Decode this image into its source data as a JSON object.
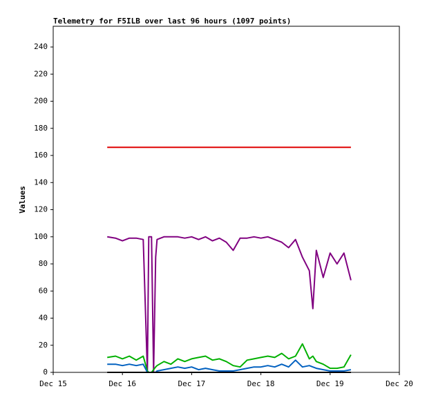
{
  "chart_data": {
    "type": "line",
    "title": "Telemetry for F5ILB over last 96 hours (1097 points)",
    "y_label": "Values",
    "x": [
      15.78,
      15.9,
      16.0,
      16.1,
      16.2,
      16.3,
      16.36,
      16.38,
      16.42,
      16.45,
      16.48,
      16.5,
      16.6,
      16.7,
      16.8,
      16.9,
      17.0,
      17.1,
      17.2,
      17.3,
      17.4,
      17.5,
      17.6,
      17.7,
      17.8,
      17.9,
      18.0,
      18.1,
      18.2,
      18.3,
      18.4,
      18.5,
      18.6,
      18.7,
      18.75,
      18.8,
      18.9,
      19.0,
      19.1,
      19.2,
      19.3
    ],
    "series": [
      {
        "color": "#e00000",
        "values": [
          166,
          166,
          166,
          166,
          166,
          166,
          166,
          166,
          166,
          166,
          166,
          166,
          166,
          166,
          166,
          166,
          166,
          166,
          166,
          166,
          166,
          166,
          166,
          166,
          166,
          166,
          166,
          166,
          166,
          166,
          166,
          166,
          166,
          166,
          166,
          166,
          166,
          166,
          166,
          166,
          166
        ]
      },
      {
        "color": "#800080",
        "values": [
          100,
          99,
          97,
          99,
          99,
          98,
          0,
          100,
          100,
          0,
          85,
          98,
          100,
          100,
          100,
          99,
          100,
          98,
          100,
          97,
          99,
          96,
          90,
          99,
          99,
          100,
          99,
          100,
          98,
          96,
          92,
          98,
          85,
          75,
          47,
          90,
          70,
          88,
          80,
          88,
          68
        ]
      },
      {
        "color": "#00b000",
        "values": [
          11,
          12,
          10,
          12,
          9,
          12,
          1,
          0,
          0,
          2,
          4,
          5,
          8,
          6,
          10,
          8,
          10,
          11,
          12,
          9,
          10,
          8,
          5,
          4,
          9,
          10,
          11,
          12,
          11,
          14,
          10,
          12,
          21,
          10,
          12,
          8,
          6,
          3,
          3,
          4,
          13
        ]
      },
      {
        "color": "#0060c0",
        "values": [
          6,
          6,
          5,
          6,
          5,
          6,
          0,
          0,
          0,
          0,
          0,
          1,
          2,
          3,
          4,
          3,
          4,
          2,
          3,
          2,
          1,
          1,
          1,
          2,
          3,
          4,
          4,
          5,
          4,
          6,
          4,
          9,
          4,
          5,
          4,
          3,
          2,
          1,
          1,
          1,
          2
        ]
      },
      {
        "color": "#000000",
        "values": [
          0,
          0,
          0,
          0,
          0,
          0,
          0,
          0,
          0,
          0,
          0,
          0,
          0,
          0,
          0,
          0,
          0,
          0,
          0,
          0,
          0,
          0,
          0,
          0,
          0,
          0,
          0,
          0,
          0,
          0,
          0,
          0,
          0,
          0,
          0,
          0,
          0,
          0,
          0,
          0,
          0
        ]
      }
    ],
    "xlim": [
      15,
      20
    ],
    "xticks": [
      {
        "value": 15,
        "label": "Dec 15"
      },
      {
        "value": 16,
        "label": "Dec 16"
      },
      {
        "value": 17,
        "label": "Dec 17"
      },
      {
        "value": 18,
        "label": "Dec 18"
      },
      {
        "value": 19,
        "label": "Dec 19"
      },
      {
        "value": 20,
        "label": "Dec 20"
      }
    ],
    "ylim": [
      0,
      255.3
    ],
    "yticks": [
      0,
      20,
      40,
      60,
      80,
      100,
      120,
      140,
      160,
      180,
      200,
      220,
      240
    ]
  }
}
